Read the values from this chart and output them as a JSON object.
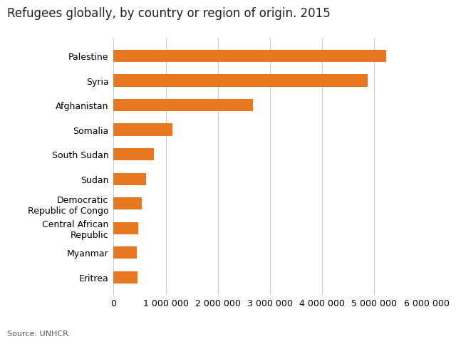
{
  "title": "Refugees globally, by country or region of origin. 2015",
  "categories": [
    "Eritrea",
    "Myanmar",
    "Central African\nRepublic",
    "Democratic\nRepublic of Congo",
    "Sudan",
    "South Sudan",
    "Somalia",
    "Afghanistan",
    "Syria",
    "Palestine"
  ],
  "values": [
    462000,
    451000,
    471000,
    541000,
    628000,
    778000,
    1123000,
    2666000,
    4872000,
    5229000
  ],
  "bar_color": "#E87722",
  "background_color": "#ffffff",
  "grid_color": "#cccccc",
  "xlim": [
    0,
    6000000
  ],
  "xticks": [
    0,
    1000000,
    2000000,
    3000000,
    4000000,
    5000000,
    6000000
  ],
  "source_text": "Source: UNHCR.",
  "title_fontsize": 12,
  "tick_fontsize": 9,
  "source_fontsize": 8
}
